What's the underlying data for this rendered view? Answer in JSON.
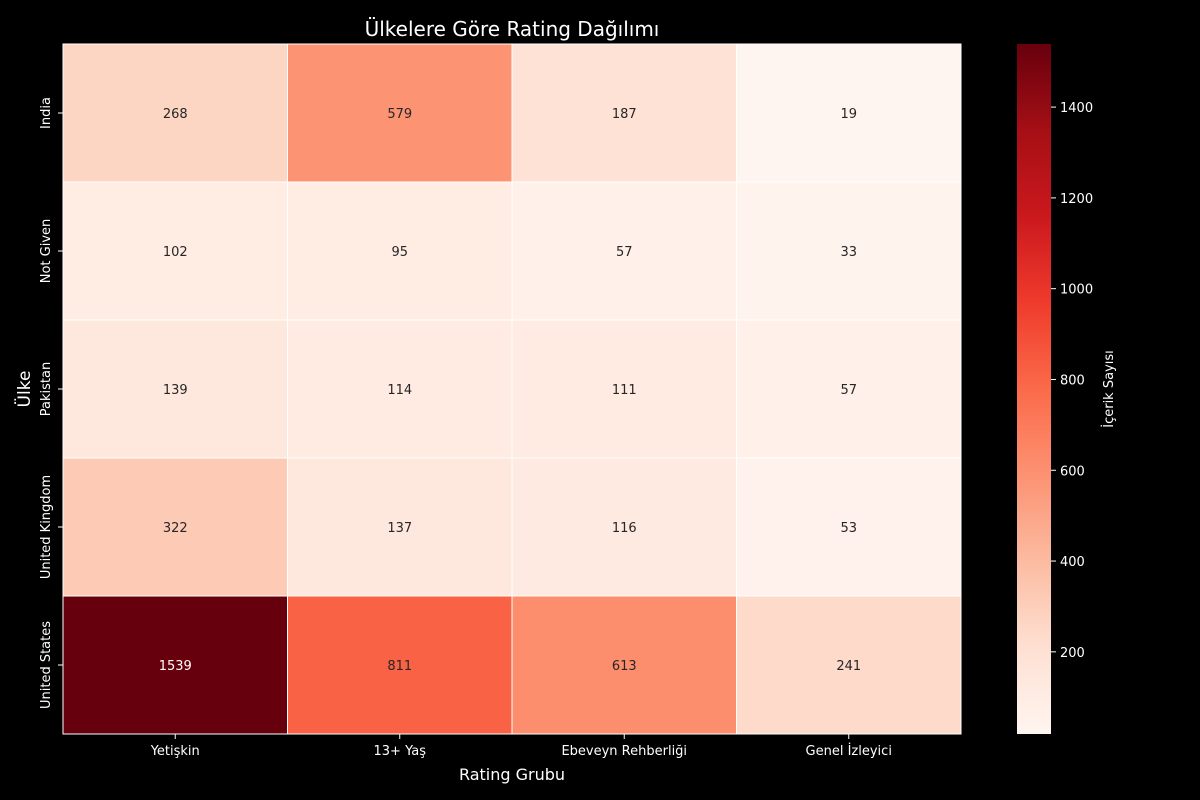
{
  "chart_data": {
    "type": "heatmap",
    "title": "Ülkelere Göre Rating Dağılımı",
    "xlabel": "Rating Grubu",
    "ylabel": "Ülke",
    "x_categories": [
      "Yetişkin",
      "13+ Yaş",
      "Ebeveyn Rehberliği",
      "Genel İzleyici"
    ],
    "y_categories": [
      "India",
      "Not Given",
      "Pakistan",
      "United Kingdom",
      "United States"
    ],
    "values": [
      [
        268,
        579,
        187,
        19
      ],
      [
        102,
        95,
        57,
        33
      ],
      [
        139,
        114,
        111,
        57
      ],
      [
        322,
        137,
        116,
        53
      ],
      [
        1539,
        811,
        613,
        241
      ]
    ],
    "colorbar": {
      "label": "İçerik Sayısı",
      "ticks": [
        200,
        400,
        600,
        800,
        1000,
        1200,
        1400
      ],
      "range": [
        19,
        1539
      ],
      "colormap": "Reds"
    }
  },
  "colors": {
    "background": "#000000",
    "text": "#ffffff",
    "cell_border": "#ffffff"
  }
}
